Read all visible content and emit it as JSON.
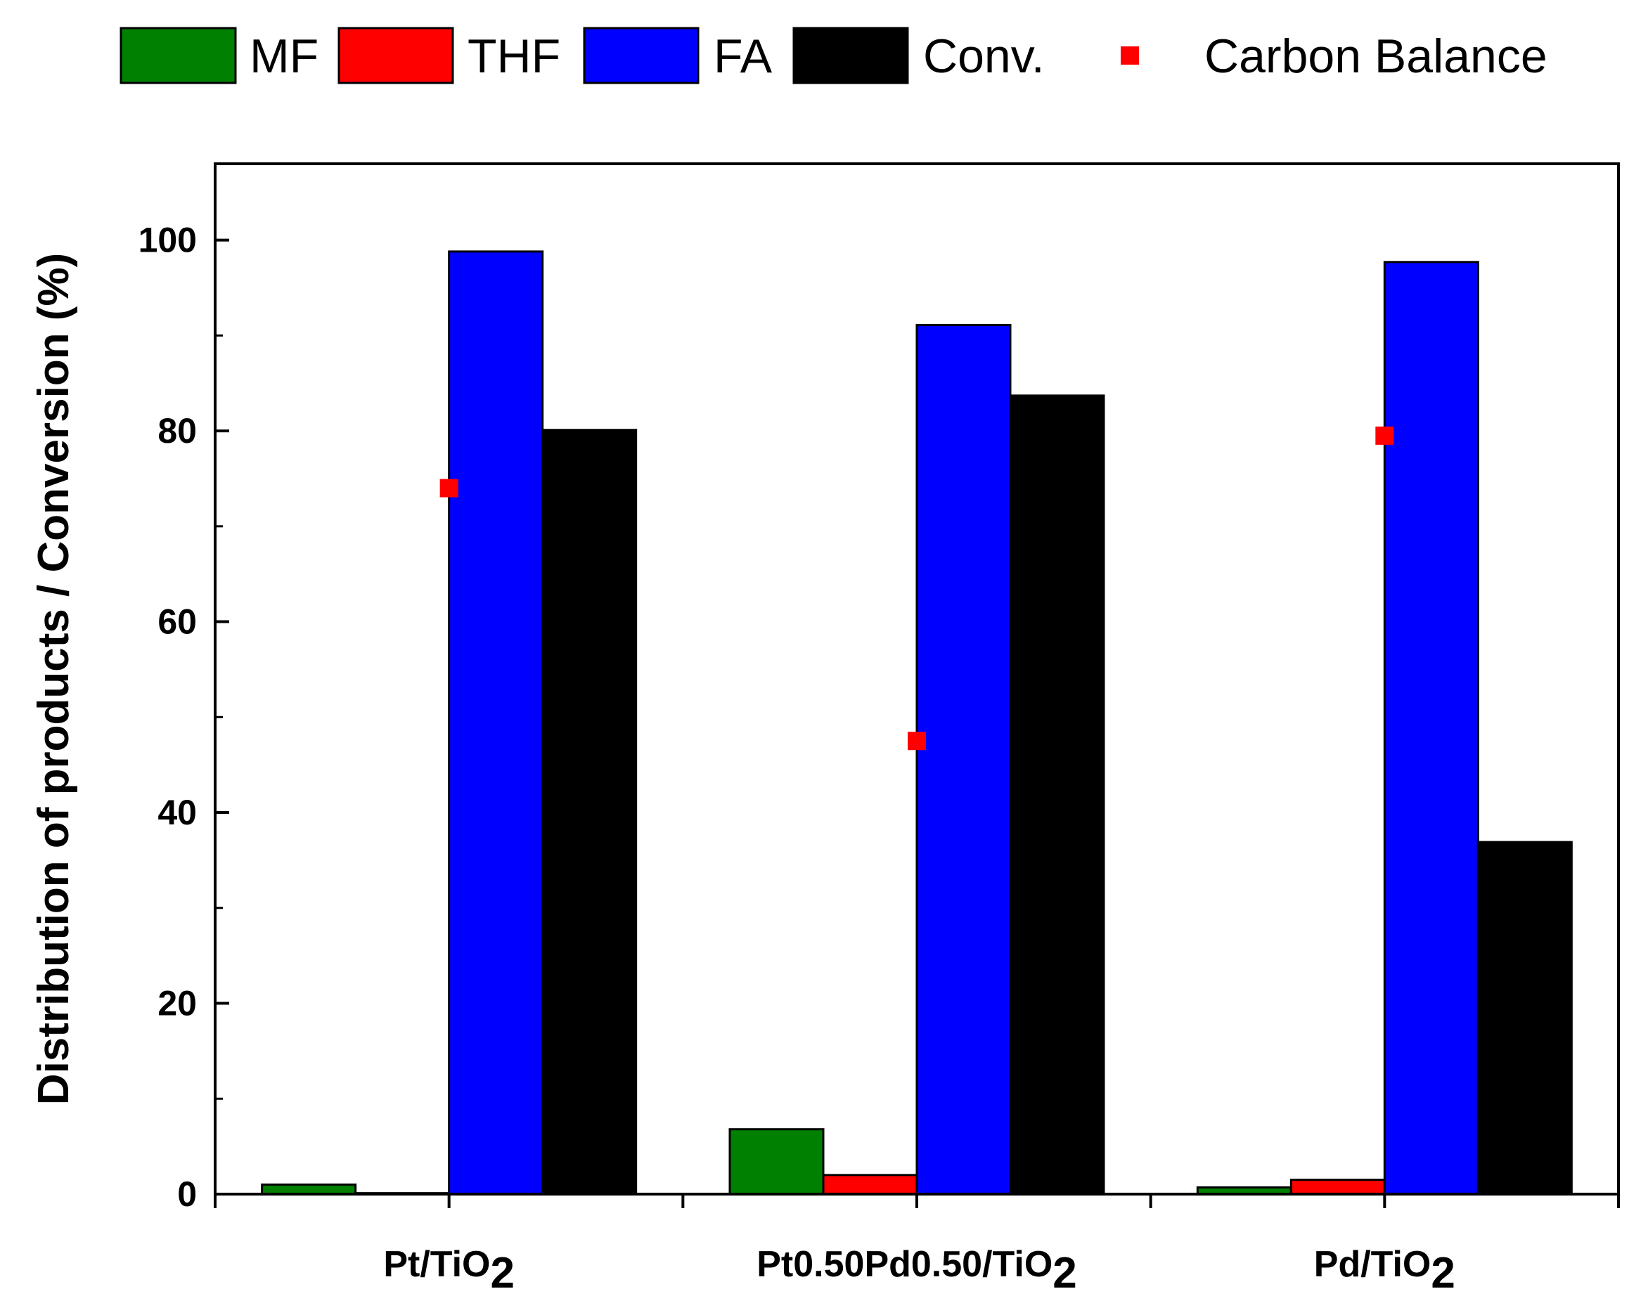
{
  "chart_data": {
    "type": "bar",
    "ylabel": "Distribution of products / Conversion (%)",
    "ylim": [
      0,
      108
    ],
    "yticks": [
      0,
      20,
      40,
      60,
      80,
      100
    ],
    "categories": [
      {
        "base": "Pt/TiO",
        "sub": "2"
      },
      {
        "base": "Pt0.50Pd0.50/TiO",
        "sub": "2"
      },
      {
        "base": "Pd/TiO",
        "sub": "2"
      }
    ],
    "series": [
      {
        "name": "MF",
        "color": "#008000",
        "values": [
          1.0,
          6.8,
          0.7
        ]
      },
      {
        "name": "THF",
        "color": "#ff0000",
        "values": [
          0.1,
          2.0,
          1.5
        ]
      },
      {
        "name": "FA",
        "color": "#0000ff",
        "values": [
          98.8,
          91.1,
          97.7
        ]
      },
      {
        "name": "Conv.",
        "color": "#000000",
        "values": [
          80.1,
          83.7,
          36.9
        ]
      }
    ],
    "markers": {
      "name": "Carbon Balance",
      "color": "#ff0000",
      "shape": "square",
      "values": [
        74.0,
        47.5,
        79.5
      ]
    },
    "grid": false,
    "legend_position": "top"
  }
}
